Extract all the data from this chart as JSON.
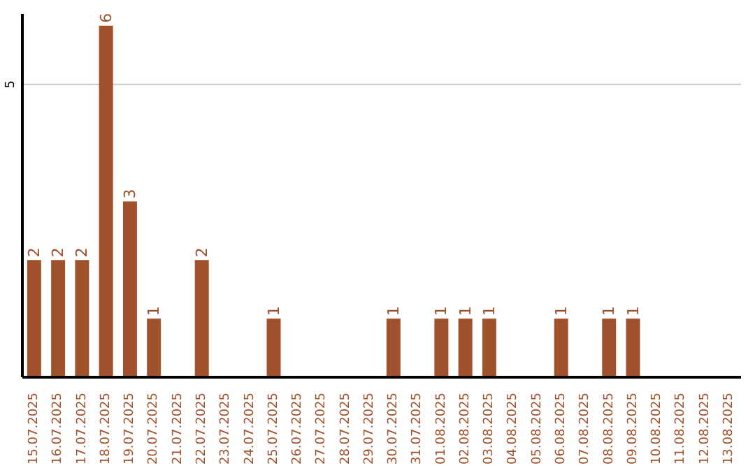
{
  "chart_data": {
    "type": "bar",
    "categories": [
      "15.07.2025",
      "16.07.2025",
      "17.07.2025",
      "18.07.2025",
      "19.07.2025",
      "20.07.2025",
      "21.07.2025",
      "22.07.2025",
      "23.07.2025",
      "24.07.2025",
      "25.07.2025",
      "26.07.2025",
      "27.07.2025",
      "28.07.2025",
      "29.07.2025",
      "30.07.2025",
      "31.07.2025",
      "01.08.2025",
      "02.08.2025",
      "03.08.2025",
      "04.08.2025",
      "05.08.2025",
      "06.08.2025",
      "07.08.2025",
      "08.08.2025",
      "09.08.2025",
      "10.08.2025",
      "11.08.2025",
      "12.08.2025",
      "13.08.2025"
    ],
    "values": [
      2,
      2,
      2,
      6,
      3,
      1,
      0,
      2,
      0,
      0,
      1,
      0,
      0,
      0,
      0,
      1,
      0,
      1,
      1,
      1,
      0,
      0,
      1,
      0,
      1,
      1,
      0,
      0,
      0,
      0
    ],
    "value_labels": [
      "2",
      "2",
      "2",
      "6",
      "3",
      "1",
      null,
      "2",
      null,
      null,
      "1",
      null,
      null,
      null,
      null,
      "1",
      null,
      "1",
      "1",
      "1",
      null,
      null,
      "1",
      null,
      "1",
      "1",
      null,
      null,
      null,
      null
    ],
    "color": "#a0522d",
    "ylim": [
      0,
      6.2
    ],
    "yticks": [
      5
    ],
    "grid": "y"
  }
}
